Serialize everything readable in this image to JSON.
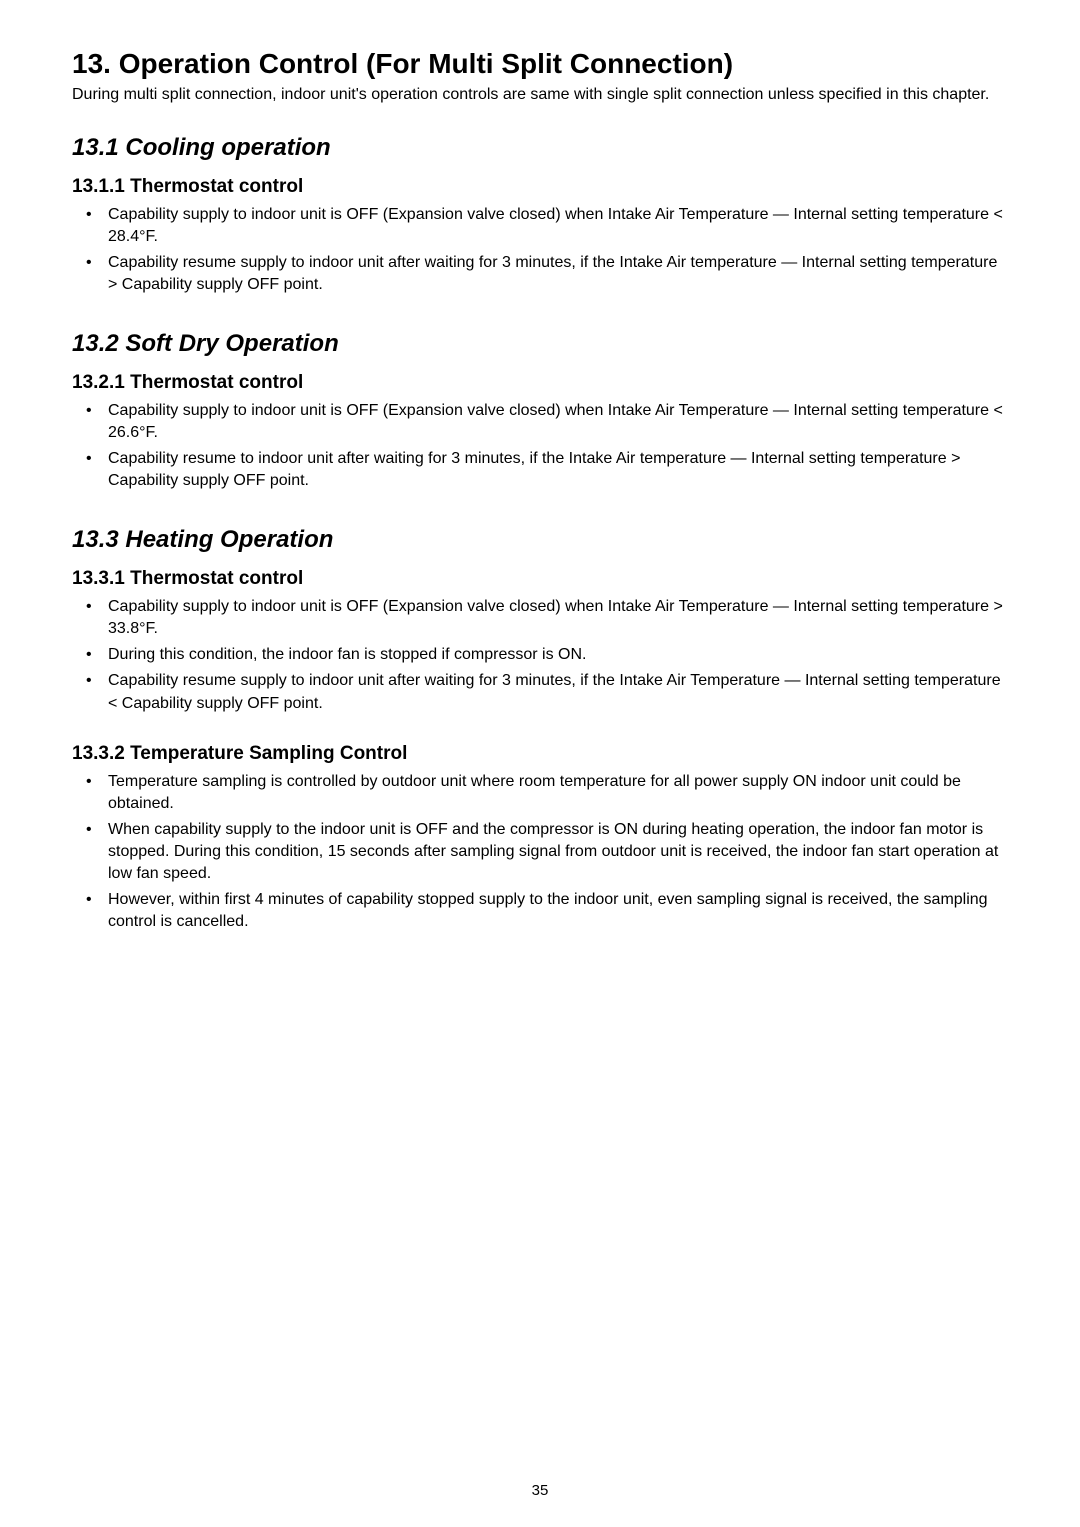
{
  "pageNumber": "35",
  "title": "13.   Operation Control (For Multi Split Connection)",
  "intro": "During multi split connection, indoor unit's operation controls are same with single split connection unless specified in this chapter.",
  "s131": {
    "heading": "13.1    Cooling operation",
    "sub1": {
      "heading": "13.1.1     Thermostat control",
      "items": [
        "Capability supply to indoor unit is OFF (Expansion valve closed) when Intake Air Temperature — Internal setting temperature < 28.4°F.",
        "Capability resume supply to indoor unit after waiting for 3 minutes, if the Intake Air temperature — Internal setting temperature > Capability supply OFF point."
      ]
    }
  },
  "s132": {
    "heading": "13.2    Soft Dry Operation",
    "sub1": {
      "heading": "13.2.1     Thermostat control",
      "items": [
        "Capability supply to indoor unit is OFF (Expansion valve closed) when Intake Air Temperature — Internal setting temperature < 26.6°F.",
        "Capability resume to indoor unit after waiting for 3 minutes, if the Intake Air temperature — Internal setting temperature > Capability supply OFF point."
      ]
    }
  },
  "s133": {
    "heading": "13.3    Heating Operation",
    "sub1": {
      "heading": "13.3.1     Thermostat control",
      "items": [
        "Capability supply to indoor unit is OFF (Expansion valve closed) when Intake Air Temperature — Internal setting temperature > 33.8°F.",
        "During this condition, the indoor fan is stopped if compressor is ON.",
        "Capability resume supply to indoor unit after waiting for 3 minutes, if the Intake Air Temperature — Internal setting temperature < Capability supply OFF point."
      ]
    },
    "sub2": {
      "heading": "13.3.2     Temperature Sampling Control",
      "items": [
        "Temperature sampling is controlled by outdoor unit where room temperature for all power supply ON indoor unit could be obtained.",
        "When capability supply to the indoor unit is OFF and the compressor is ON during heating operation, the indoor fan motor is stopped. During this condition, 15 seconds after sampling signal from outdoor unit is received, the indoor fan start operation at low fan speed.",
        "However, within first 4 minutes of capability stopped supply to the indoor unit, even sampling signal is received, the sampling control is cancelled."
      ]
    }
  }
}
